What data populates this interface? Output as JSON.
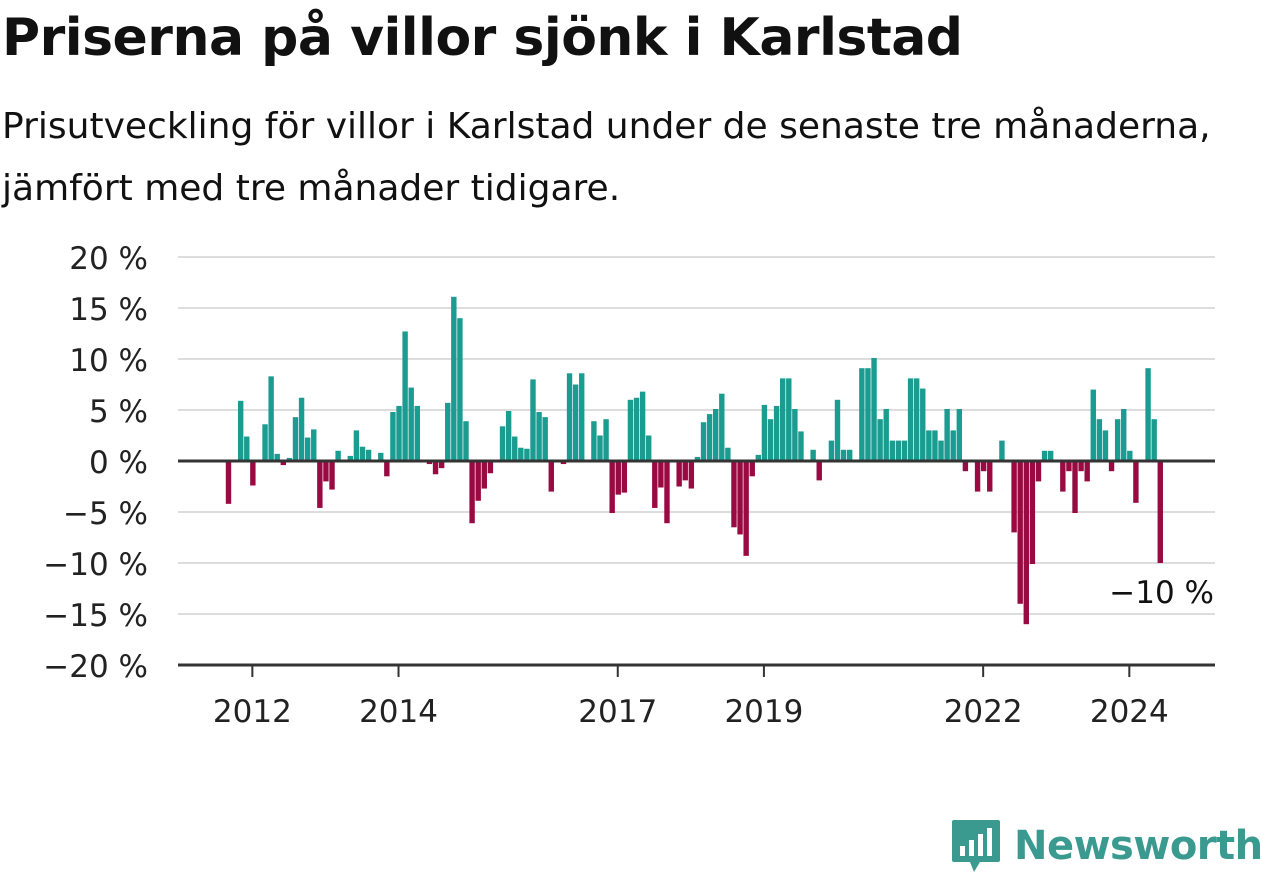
{
  "title": "Priserna på villor sjönk i Karlstad",
  "subtitle": "Prisutveckling för villor i Karlstad under de senaste tre månaderna, jämfört med tre månader tidigare.",
  "brand": "Newsworthy",
  "colors": {
    "positive": "#1a9c91",
    "negative": "#990a42",
    "grid": "#dddddd",
    "axis": "#333333",
    "brand": "#3a9a90"
  },
  "chart_data": {
    "type": "bar",
    "unit": "%",
    "ylim": [
      -20,
      20
    ],
    "yticks": [
      20,
      15,
      10,
      5,
      0,
      -5,
      -10,
      -15,
      -20
    ],
    "ytick_labels": [
      "20 %",
      "15 %",
      "10 %",
      "5 %",
      "0 %",
      "−5 %",
      "−10 %",
      "−15 %",
      "−20 %"
    ],
    "x_start": "2011-09",
    "xticks": [
      {
        "date": "2012-01",
        "label": "2012"
      },
      {
        "date": "2014-01",
        "label": "2014"
      },
      {
        "date": "2017-01",
        "label": "2017"
      },
      {
        "date": "2019-01",
        "label": "2019"
      },
      {
        "date": "2022-01",
        "label": "2022"
      },
      {
        "date": "2024-01",
        "label": "2024"
      }
    ],
    "values": [
      -4.2,
      0,
      5.9,
      2.4,
      -2.4,
      0,
      3.6,
      8.3,
      0.7,
      -0.4,
      0.3,
      4.3,
      6.2,
      2.3,
      3.1,
      -4.6,
      -2.0,
      -2.8,
      1.0,
      0,
      0.5,
      3.0,
      1.4,
      1.1,
      0,
      0.8,
      -1.5,
      4.8,
      5.4,
      12.7,
      7.2,
      5.4,
      0,
      -0.3,
      -1.3,
      -0.7,
      5.7,
      16.1,
      14.0,
      3.9,
      -6.1,
      -3.9,
      -2.7,
      -1.2,
      0,
      3.4,
      4.9,
      2.4,
      1.3,
      1.2,
      8.0,
      4.8,
      4.3,
      -3.0,
      0,
      -0.3,
      8.6,
      7.5,
      8.6,
      0,
      3.9,
      2.5,
      4.1,
      -5.1,
      -3.3,
      -3.1,
      6.0,
      6.2,
      6.8,
      2.5,
      -4.6,
      -2.6,
      -6.1,
      0,
      -2.5,
      -1.9,
      -2.7,
      0.4,
      3.8,
      4.6,
      5.1,
      6.6,
      1.3,
      -6.5,
      -7.2,
      -9.3,
      -1.5,
      0.6,
      5.5,
      4.1,
      5.4,
      8.1,
      8.1,
      5.1,
      2.9,
      0,
      1.1,
      -1.9,
      0,
      2.0,
      6.0,
      1.1,
      1.1,
      0,
      9.1,
      9.1,
      10.1,
      4.1,
      5.1,
      2.0,
      2.0,
      2.0,
      8.1,
      8.1,
      7.1,
      3.0,
      3.0,
      2.0,
      5.1,
      3.0,
      5.1,
      -1.0,
      0,
      -3.0,
      -1.0,
      -3.0,
      0,
      2.0,
      0,
      -7.0,
      -14.0,
      -16.0,
      -10.1,
      -2.0,
      1.0,
      1.0,
      0,
      -3.0,
      -1.0,
      -5.1,
      -1.0,
      -2.0,
      7.0,
      4.1,
      3.0,
      -1.0,
      4.1,
      5.1,
      1.0,
      -4.1,
      0,
      9.1,
      4.1,
      -10.0
    ],
    "annotation": {
      "text": "−10 %",
      "value": -10
    }
  }
}
